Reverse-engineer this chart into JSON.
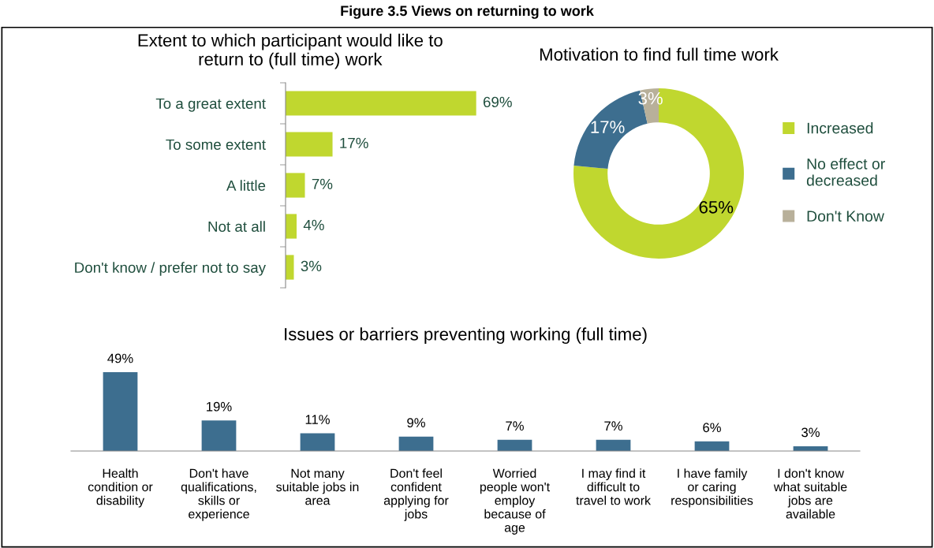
{
  "chart_data": [
    {
      "type": "bar",
      "orientation": "horizontal",
      "title": "Extent to which participant would like to\nreturn to (full time) work",
      "annotations": [
        "Figure 3.5 Views on returning to work"
      ],
      "categories": [
        "To a great extent",
        "To some extent",
        "A little",
        "Not at all",
        "Don't know / prefer not to say"
      ],
      "values": [
        69,
        17,
        7,
        4,
        3
      ],
      "color": "#c0d72f",
      "value_labels": [
        "69%",
        "17%",
        "7%",
        "4%",
        "3%"
      ],
      "legend": false,
      "grid": false
    },
    {
      "type": "donut",
      "title": "Motivation to find full time work",
      "categories": [
        "Increased",
        "No effect or\ndecreased",
        "Don't Know"
      ],
      "values": [
        65,
        17,
        3
      ],
      "colors": [
        "#c0d72f",
        "#3d6e8f",
        "#b8b09a"
      ],
      "value_labels": [
        "65%",
        "17%",
        "3%"
      ],
      "legend": "right"
    },
    {
      "type": "bar",
      "title": "Issues or barriers preventing working (full time)",
      "categories": [
        "Health\ncondition or\ndisability",
        "Don't have\nqualifications,\nskills or\nexperience",
        "Not many\nsuitable jobs in\narea",
        "Don't feel\nconfident\napplying for\njobs",
        "Worried\npeople won't\nemploy\nbecause of\nage",
        "I may find it\ndifficult to\ntravel to work",
        "I have family\nor caring\nresponsibilities",
        "I don't know\nwhat suitable\njobs are\navailable"
      ],
      "values": [
        49,
        19,
        11,
        9,
        7,
        7,
        6,
        3
      ],
      "color": "#3d6e8f",
      "value_labels": [
        "49%",
        "19%",
        "11%",
        "9%",
        "7%",
        "7%",
        "6%",
        "3%"
      ],
      "legend": false,
      "grid": false
    }
  ]
}
